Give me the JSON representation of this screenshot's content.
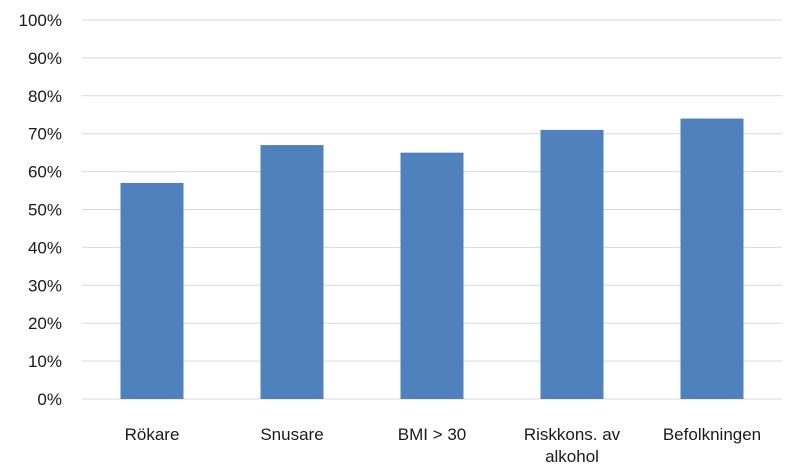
{
  "chart_data": {
    "type": "bar",
    "title": "",
    "xlabel": "",
    "ylabel": "",
    "categories": [
      [
        "Rökare"
      ],
      [
        "Snusare"
      ],
      [
        "BMI > 30"
      ],
      [
        "Riskkons. av",
        "alkohol"
      ],
      [
        "Befolkningen"
      ]
    ],
    "values": [
      0.57,
      0.67,
      0.65,
      0.71,
      0.74
    ],
    "ylim": [
      0,
      1
    ],
    "y_ticks": [
      "0%",
      "10%",
      "20%",
      "30%",
      "40%",
      "50%",
      "60%",
      "70%",
      "80%",
      "90%",
      "100%"
    ],
    "grid": true,
    "legend": "none",
    "colors": {
      "bar": "#4f81bd",
      "grid": "#d9d9d9",
      "text": "#1a1a1a"
    }
  }
}
